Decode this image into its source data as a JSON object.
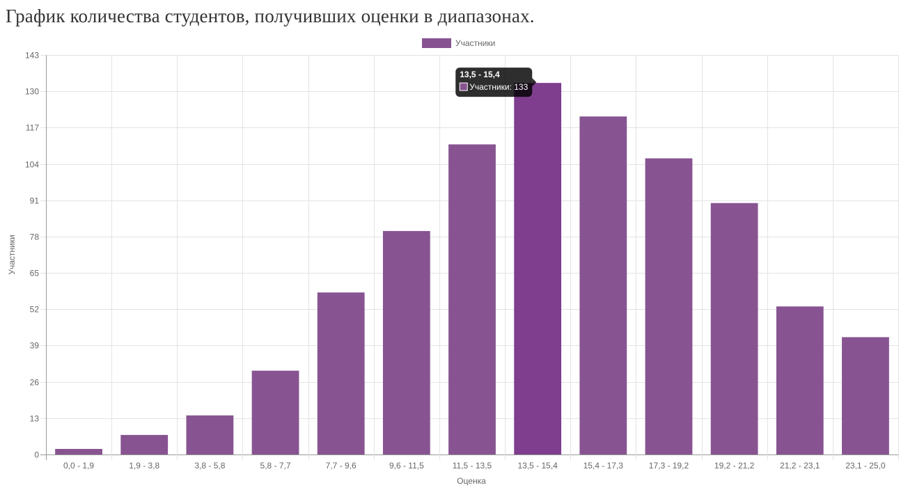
{
  "page": {
    "title": "График количества студентов, получивших оценки в диапазонах."
  },
  "chart_data": {
    "type": "bar",
    "categories": [
      "0,0 - 1,9",
      "1,9 - 3,8",
      "3,8 - 5,8",
      "5,8 - 7,7",
      "7,7 - 9,6",
      "9,6 - 11,5",
      "11,5 - 13,5",
      "13,5 - 15,4",
      "15,4 - 17,3",
      "17,3 - 19,2",
      "19,2 - 21,2",
      "21,2 - 23,1",
      "23,1 - 25,0"
    ],
    "series": [
      {
        "name": "Участники",
        "values": [
          2,
          7,
          14,
          30,
          58,
          80,
          111,
          133,
          121,
          106,
          90,
          53,
          42
        ],
        "color": "#875491",
        "highlight_color": "#7f3e8e"
      }
    ],
    "xlabel": "Оценка",
    "ylabel": "Участники",
    "ylim": [
      0,
      143
    ],
    "yticks": [
      0,
      13,
      26,
      39,
      52,
      65,
      78,
      91,
      104,
      117,
      130,
      143
    ],
    "grid": true,
    "legend_position": "top",
    "tooltip": {
      "title": "13,5 - 15,4",
      "label": "Участники:",
      "value": "133",
      "category_index": 7
    }
  }
}
